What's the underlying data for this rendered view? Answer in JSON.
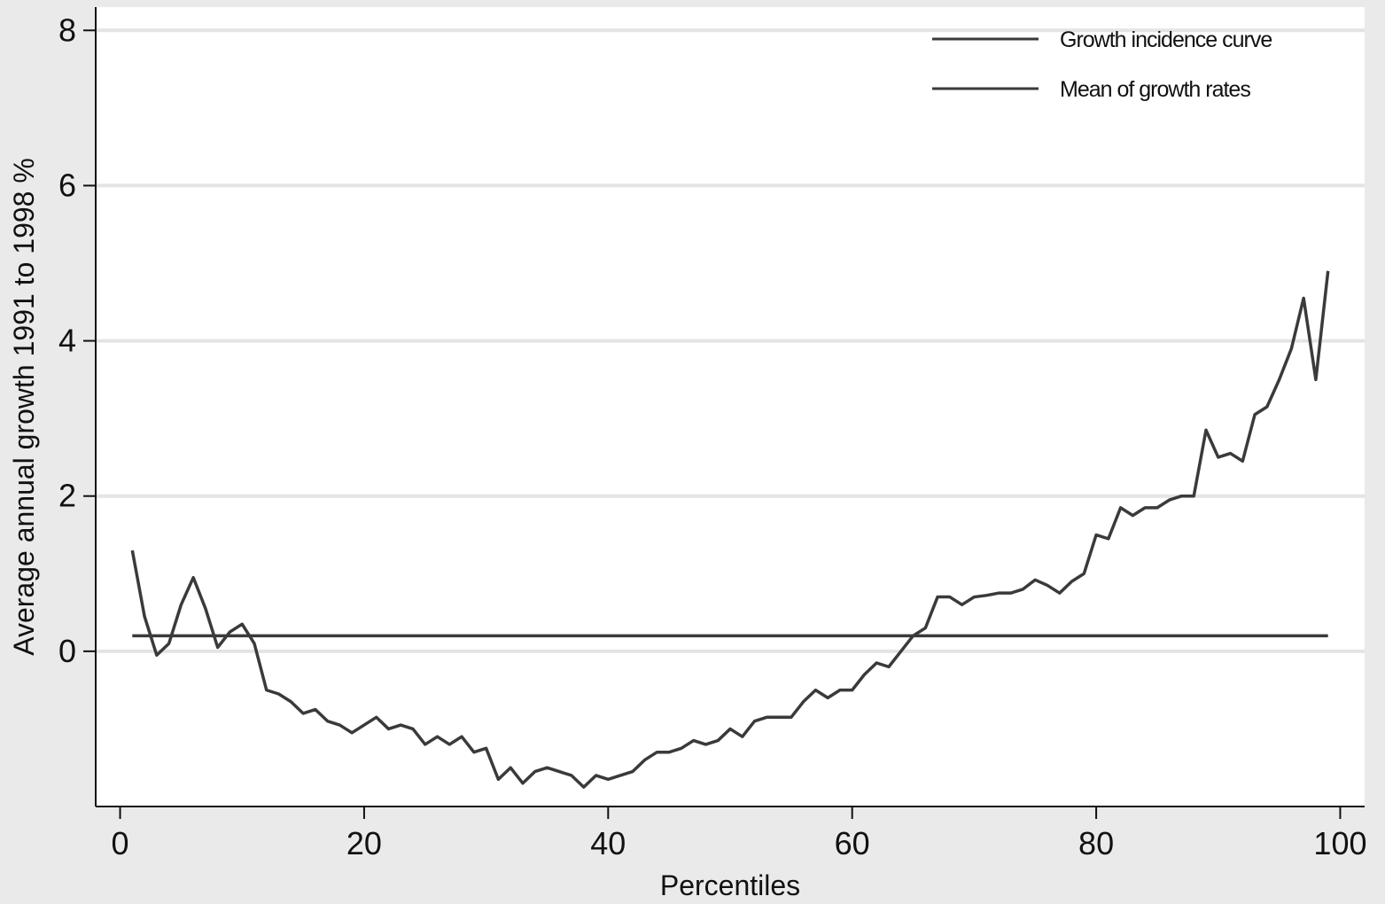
{
  "chart_data": {
    "type": "line",
    "x_label": "Percentiles",
    "y_label": "Average annual growth 1991 to 1998 %",
    "xlim": [
      -2,
      102
    ],
    "xticks": [
      0,
      20,
      40,
      60,
      80,
      100
    ],
    "ylim": [
      -2,
      8.3
    ],
    "yticks": [
      0,
      2,
      4,
      6,
      8
    ],
    "grid": true,
    "legend": "top-right",
    "series": [
      {
        "name": "Growth incidence curve",
        "color": "#3a3a3a",
        "x": [
          1,
          2,
          3,
          4,
          5,
          6,
          7,
          8,
          9,
          10,
          11,
          12,
          13,
          14,
          15,
          16,
          17,
          18,
          19,
          20,
          21,
          22,
          23,
          24,
          25,
          26,
          27,
          28,
          29,
          30,
          31,
          32,
          33,
          34,
          35,
          36,
          37,
          38,
          39,
          40,
          41,
          42,
          43,
          44,
          45,
          46,
          47,
          48,
          49,
          50,
          51,
          52,
          53,
          54,
          55,
          56,
          57,
          58,
          59,
          60,
          61,
          62,
          63,
          64,
          65,
          66,
          67,
          68,
          69,
          70,
          71,
          72,
          73,
          74,
          75,
          76,
          77,
          78,
          79,
          80,
          81,
          82,
          83,
          84,
          85,
          86,
          87,
          88,
          89,
          90,
          91,
          92,
          93,
          94,
          95,
          96,
          97,
          98,
          99
        ],
        "values": [
          1.3,
          0.45,
          -0.05,
          0.1,
          0.6,
          0.95,
          0.55,
          0.05,
          0.25,
          0.35,
          0.1,
          -0.5,
          -0.55,
          -0.65,
          -0.8,
          -0.75,
          -0.9,
          -0.95,
          -1.05,
          -0.95,
          -0.85,
          -1.0,
          -0.95,
          -1.0,
          -1.2,
          -1.1,
          -1.2,
          -1.1,
          -1.3,
          -1.25,
          -1.65,
          -1.5,
          -1.7,
          -1.55,
          -1.5,
          -1.55,
          -1.6,
          -1.75,
          -1.6,
          -1.65,
          -1.6,
          -1.55,
          -1.4,
          -1.3,
          -1.3,
          -1.25,
          -1.15,
          -1.2,
          -1.15,
          -1.0,
          -1.1,
          -0.9,
          -0.85,
          -0.85,
          -0.85,
          -0.65,
          -0.5,
          -0.6,
          -0.5,
          -0.5,
          -0.3,
          -0.15,
          -0.2,
          0.0,
          0.2,
          0.3,
          0.7,
          0.7,
          0.6,
          0.7,
          0.72,
          0.75,
          0.75,
          0.8,
          0.92,
          0.85,
          0.75,
          0.9,
          1.0,
          1.5,
          1.45,
          1.85,
          1.75,
          1.85,
          1.85,
          1.95,
          2.0,
          2.0,
          2.85,
          2.5,
          2.55,
          2.45,
          3.05,
          3.15,
          3.5,
          3.9,
          4.55,
          3.5,
          4.9
        ]
      },
      {
        "name": "Mean of growth rates",
        "color": "#3a3a3a",
        "x": [
          1,
          99
        ],
        "values": [
          0.2,
          0.2
        ]
      }
    ]
  }
}
